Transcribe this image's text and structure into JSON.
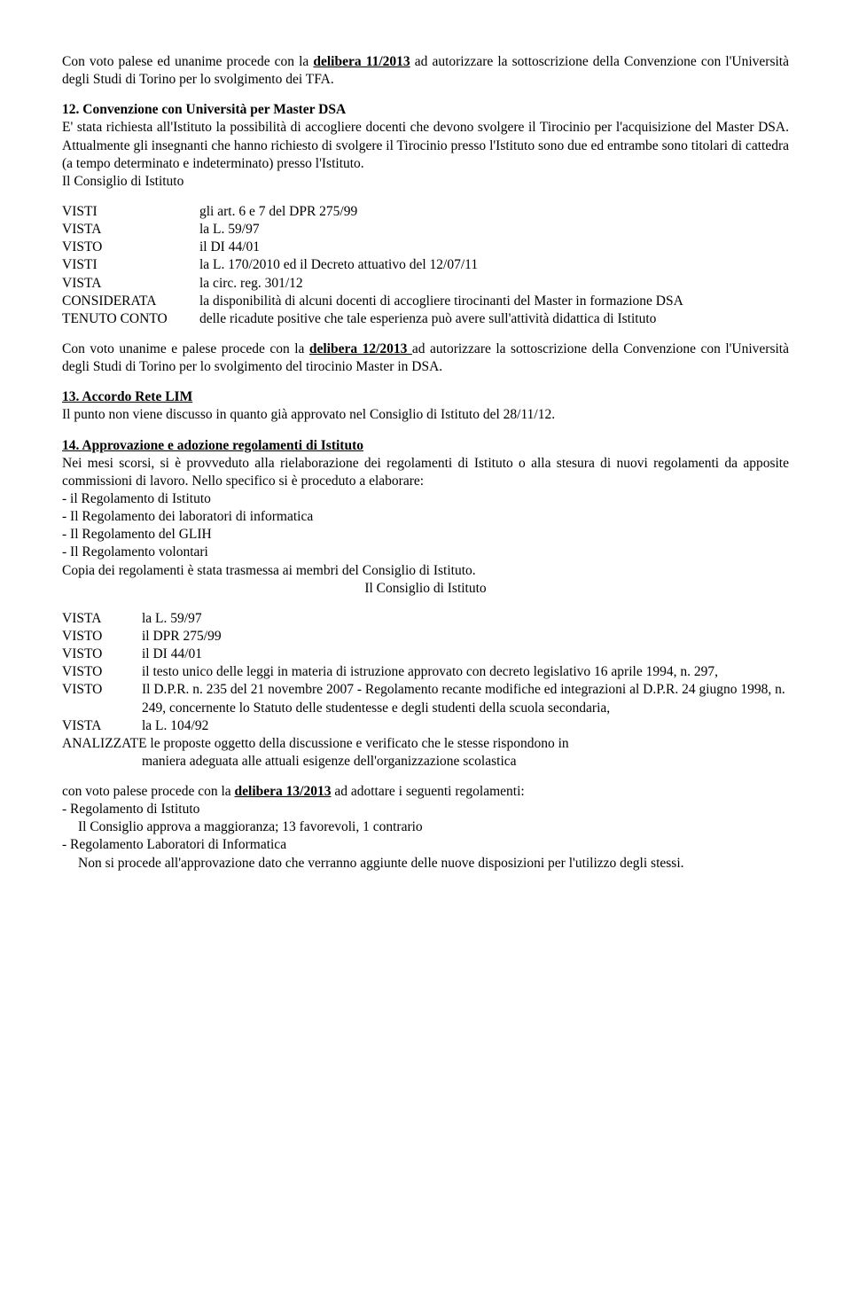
{
  "p1": {
    "pre": "Con voto palese ed unanime procede con la ",
    "del": "delibera 11/2013",
    "post": " ad autorizzare la sottoscrizione della Convenzione con l'Università degli Studi di Torino per lo svolgimento dei TFA."
  },
  "s12": {
    "title": "12. Convenzione con Università per Master DSA",
    "body": "E' stata richiesta all'Istituto la possibilità di accogliere docenti che devono svolgere il Tirocinio per l'acquisizione del Master DSA. Attualmente gli insegnanti che hanno richiesto di svolgere il Tirocinio presso l'Istituto sono due ed entrambe sono titolari di cattedra (a tempo determinato e indeterminato) presso l'Istituto.",
    "council": "Il Consiglio di Istituto"
  },
  "rows12": [
    {
      "l": "VISTI",
      "v": "gli art. 6 e 7 del DPR 275/99"
    },
    {
      "l": "VISTA",
      "v": "la L. 59/97"
    },
    {
      "l": "VISTO",
      "v": "il DI 44/01"
    },
    {
      "l": "VISTI",
      "v": "la L. 170/2010 ed il Decreto attuativo del  12/07/11"
    },
    {
      "l": "VISTA",
      "v": "la circ. reg. 301/12"
    },
    {
      "l": "CONSIDERATA",
      "v": "la disponibilità di alcuni docenti di accogliere tirocinanti del Master in formazione DSA"
    },
    {
      "l": "TENUTO CONTO",
      "v": "delle ricadute positive che tale esperienza può avere sull'attività didattica di Istituto"
    }
  ],
  "p12end": {
    "pre": "Con voto unanime e palese procede con la  ",
    "del": "delibera 12/2013 ",
    "post": "ad autorizzare la sottoscrizione della Convenzione con l'Università degli Studi di Torino per lo svolgimento del tirocinio Master in DSA."
  },
  "s13": {
    "title": "13. Accordo Rete LIM",
    "body": "Il punto non viene discusso in quanto già approvato nel Consiglio di Istituto del 28/11/12."
  },
  "s14": {
    "title": "14. Approvazione e adozione regolamenti di Istituto",
    "body1": "Nei mesi scorsi, si è provveduto alla rielaborazione dei regolamenti di Istituto o alla stesura di nuovi regolamenti da apposite commissioni di lavoro. Nello specifico si è proceduto a elaborare:",
    "items": [
      "- il Regolamento di Istituto",
      "- Il Regolamento dei laboratori di informatica",
      "- Il Regolamento del GLIH",
      "- Il Regolamento volontari"
    ],
    "body2": "Copia dei regolamenti è stata trasmessa ai membri del Consiglio di Istituto.",
    "council": "Il Consiglio di Istituto"
  },
  "rows14": [
    {
      "l": "VISTA",
      "v": "la L. 59/97"
    },
    {
      "l": "VISTO",
      "v": "il DPR 275/99"
    },
    {
      "l": "VISTO",
      "v": "il DI 44/01"
    },
    {
      "l": "VISTO",
      "v": "il testo unico delle leggi in materia di istruzione approvato con decreto legislativo 16 aprile 1994, n. 297,"
    },
    {
      "l": "VISTO",
      "v": "Il D.P.R. n. 235 del 21 novembre 2007 - Regolamento recante modifiche ed integrazioni al D.P.R. 24 giugno 1998, n. 249, concernente lo Statuto delle studentesse e degli studenti della scuola secondaria,"
    },
    {
      "l": "VISTA",
      "v": "la L.  104/92"
    }
  ],
  "analizzate": "ANALIZZATE le proposte oggetto della discussione e verificato che le stesse rispondono in",
  "analizzate2": "maniera adeguata alle attuali esigenze dell'organizzazione scolastica",
  "p14end": {
    "pre": "con voto palese procede con la  ",
    "del": "delibera 13/2013",
    "post": " ad adottare i seguenti regolamenti:"
  },
  "reg": {
    "r1": "- Regolamento di Istituto",
    "r1sub": "Il Consiglio approva a maggioranza; 13 favorevoli, 1 contrario",
    "r2": "- Regolamento Laboratori di Informatica",
    "r2sub": "Non si procede all'approvazione dato che verranno aggiunte delle nuove disposizioni per l'utilizzo degli stessi."
  }
}
